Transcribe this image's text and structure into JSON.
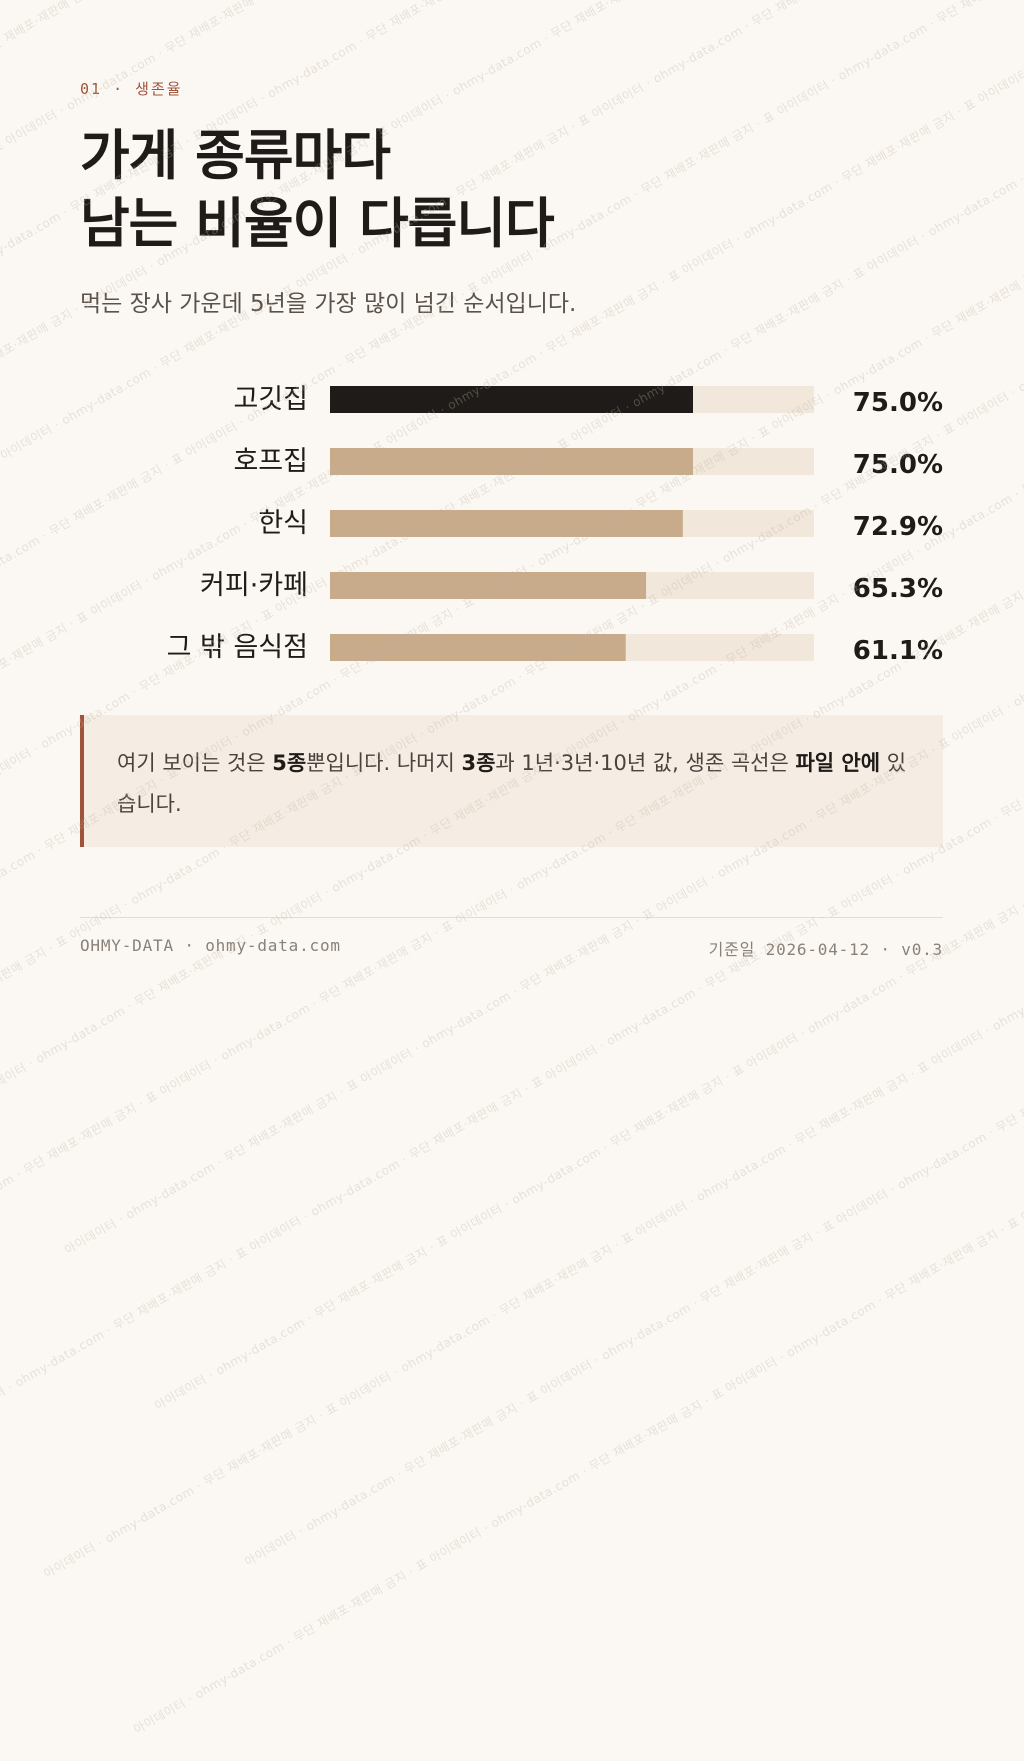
{
  "eyebrow": "01 · 생존율",
  "title_lines": [
    "가게 종류마다",
    "남는 비율이 다릅니다"
  ],
  "subtitle": "먹는 장사 가운데 5년을 가장 많이 넘긴 순서입니다.",
  "chart_data": {
    "type": "bar",
    "orientation": "horizontal",
    "categories": [
      "고깃집",
      "호프집",
      "한식",
      "커피·카페",
      "그 밖 음식점"
    ],
    "values": [
      75.0,
      75.0,
      72.9,
      65.3,
      61.1
    ],
    "value_labels": [
      "75.0%",
      "75.0%",
      "72.9%",
      "65.3%",
      "61.1%"
    ],
    "xlim": [
      0,
      100
    ],
    "grid": false,
    "legend": "none",
    "colors": {
      "highlight": "#1f1b18",
      "bar": "#c8ab8b",
      "track": "#f1e8db"
    },
    "highlight_index": 0
  },
  "note": {
    "t1": "여기 보이는 것은 ",
    "b1": "5종",
    "t2": "뿐입니다. 나머지 ",
    "b2": "3종",
    "t3": "과 1년·3년·10년 값, 생존 곡선은 ",
    "b3": "파일 안에",
    "t4": " 있습니다."
  },
  "footer": {
    "left": "OHMY-DATA · ohmy-data.com",
    "right": "기준일 2026-04-12 · v0.3"
  },
  "watermark": "아이데이터 · ohmy-data.com · 무단 재배포·재판매 금지 · 표",
  "colors": {
    "accent": "#a0533b",
    "text": "#1f1b18",
    "muted": "#8a8178",
    "background": "#fbf8f3"
  }
}
